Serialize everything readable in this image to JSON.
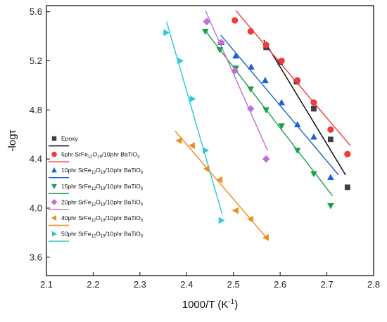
{
  "chart_data": {
    "type": "scatter",
    "xlabel": "1000/T (K",
    "xlabel_sup": "-1",
    "xlabel_suffix": ")",
    "ylabel": "-logτ",
    "xlim": [
      2.1,
      2.8
    ],
    "ylim": [
      3.45,
      5.65
    ],
    "xticks": [
      "2.1",
      "2.2",
      "2.3",
      "2.4",
      "2.5",
      "2.6",
      "2.7",
      "2.8"
    ],
    "yticks": [
      "3.6",
      "4.0",
      "4.4",
      "4.8",
      "5.2",
      "5.6"
    ],
    "xtick_values": [
      2.1,
      2.2,
      2.3,
      2.4,
      2.5,
      2.6,
      2.7,
      2.8
    ],
    "ytick_values": [
      3.6,
      4.0,
      4.4,
      4.8,
      5.2,
      5.6
    ],
    "legend_position": "bottom-left",
    "series": [
      {
        "name": "Epoxy",
        "legend_parts": [
          [
            "Epoxy",
            ""
          ]
        ],
        "marker": "square",
        "color": "#404040",
        "line_color": "#000000",
        "x": [
          2.57,
          2.6,
          2.635,
          2.672,
          2.708,
          2.744
        ],
        "y": [
          5.31,
          5.19,
          5.03,
          4.81,
          4.56,
          4.17
        ],
        "fit": [
          [
            2.565,
            5.37
          ],
          [
            2.74,
            4.27
          ]
        ]
      },
      {
        "name": "5phr SrFe12O19/10phr BaTiO3",
        "legend_parts": [
          [
            "5phr SrFe",
            ""
          ],
          [
            "12",
            "sub"
          ],
          [
            "O",
            ""
          ],
          [
            "19",
            "sub"
          ],
          [
            "/10phr BaTiO",
            ""
          ],
          [
            "3",
            "sub"
          ]
        ],
        "marker": "circle",
        "color": "#f03a3a",
        "line_color": "#f03a3a",
        "x": [
          2.503,
          2.537,
          2.57,
          2.603,
          2.637,
          2.672,
          2.708,
          2.744
        ],
        "y": [
          5.53,
          5.44,
          5.33,
          5.2,
          5.04,
          4.86,
          4.64,
          4.44
        ],
        "fit": [
          [
            2.505,
            5.61
          ],
          [
            2.75,
            4.51
          ]
        ]
      },
      {
        "name": "10phr SrFe12O19/10phr BaTiO3",
        "legend_parts": [
          [
            "10phr SrFe",
            ""
          ],
          [
            "12",
            "sub"
          ],
          [
            "O",
            ""
          ],
          [
            "19",
            "sub"
          ],
          [
            "/10phr BaTiO",
            ""
          ],
          [
            "3",
            "sub"
          ]
        ],
        "marker": "triangle-up",
        "color": "#1f5fd6",
        "line_color": "#1f5fd6",
        "x": [
          2.474,
          2.505,
          2.538,
          2.568,
          2.603,
          2.637,
          2.672,
          2.708
        ],
        "y": [
          5.35,
          5.24,
          5.15,
          5.04,
          4.86,
          4.68,
          4.58,
          4.25
        ],
        "fit": [
          [
            2.473,
            5.41
          ],
          [
            2.725,
            4.27
          ]
        ]
      },
      {
        "name": "15phr SrFe12O19/10phr BaTiO3",
        "legend_parts": [
          [
            "15phr SrFe",
            ""
          ],
          [
            "12",
            "sub"
          ],
          [
            "O",
            ""
          ],
          [
            "19",
            "sub"
          ],
          [
            "/10phr BaTiO",
            ""
          ],
          [
            "3",
            "sub"
          ]
        ],
        "marker": "triangle-down",
        "color": "#1aa047",
        "line_color": "#1aa047",
        "x": [
          2.44,
          2.471,
          2.505,
          2.537,
          2.57,
          2.603,
          2.637,
          2.672,
          2.708
        ],
        "y": [
          5.44,
          5.29,
          5.14,
          4.97,
          4.8,
          4.67,
          4.47,
          4.28,
          4.02
        ],
        "fit": [
          [
            2.437,
            5.46
          ],
          [
            2.712,
            4.1
          ]
        ]
      },
      {
        "name": "20phr SrFe12O19/10phr BaTiO3",
        "legend_parts": [
          [
            "20phr SrFe",
            ""
          ],
          [
            "12",
            "sub"
          ],
          [
            "O",
            ""
          ],
          [
            "19",
            "sub"
          ],
          [
            "/10phr BaTiO",
            ""
          ],
          [
            "3",
            "sub"
          ]
        ],
        "marker": "diamond",
        "color": "#c26fd8",
        "line_color": "#c26fd8",
        "x": [
          2.443,
          2.474,
          2.503,
          2.537,
          2.57
        ],
        "y": [
          5.52,
          5.35,
          5.12,
          4.81,
          4.4
        ],
        "fit": [
          [
            2.44,
            5.61
          ],
          [
            2.573,
            4.47
          ]
        ]
      },
      {
        "name": "40phr SrFe12O19/10phr BaTiO3",
        "legend_parts": [
          [
            "40phr SrFe",
            ""
          ],
          [
            "12",
            "sub"
          ],
          [
            "O",
            ""
          ],
          [
            "19",
            "sub"
          ],
          [
            "/10phr BaTiO",
            ""
          ],
          [
            "3",
            "sub"
          ]
        ],
        "marker": "triangle-left",
        "color": "#f08a1e",
        "line_color": "#f08a1e",
        "x": [
          2.384,
          2.412,
          2.443,
          2.471,
          2.505,
          2.537,
          2.57
        ],
        "y": [
          4.55,
          4.51,
          4.32,
          4.23,
          3.98,
          3.91,
          3.76
        ],
        "fit": [
          [
            2.375,
            4.63
          ],
          [
            2.575,
            3.74
          ]
        ]
      },
      {
        "name": "50phr SrFe12O19/10phr BaTiO3",
        "legend_parts": [
          [
            "50phr SrFe",
            ""
          ],
          [
            "12",
            "sub"
          ],
          [
            "O",
            ""
          ],
          [
            "19",
            "sub"
          ],
          [
            "/10phr BaTiO",
            ""
          ],
          [
            "3",
            "sub"
          ]
        ],
        "marker": "triangle-right",
        "color": "#28c8d6",
        "line_color": "#28c8d6",
        "x": [
          2.356,
          2.386,
          2.412,
          2.44,
          2.474
        ],
        "y": [
          5.43,
          5.2,
          4.89,
          4.47,
          3.9
        ],
        "fit": [
          [
            2.357,
            5.52
          ],
          [
            2.476,
            3.95
          ]
        ]
      }
    ]
  }
}
